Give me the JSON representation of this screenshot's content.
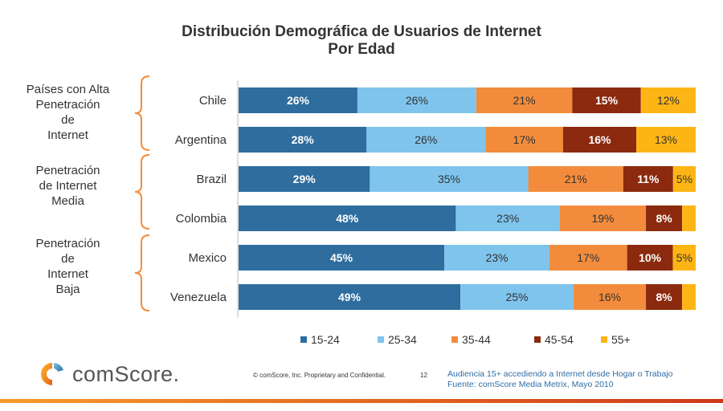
{
  "header": {
    "title_line1": "Distribución Demográfica de Usuarios de Internet",
    "title_line2": "Por Edad"
  },
  "groups": [
    {
      "label_lines": [
        "Países con Alta",
        "Penetración",
        "de",
        "Internet"
      ]
    },
    {
      "label_lines": [
        "Penetración",
        "de Internet",
        "Media"
      ]
    },
    {
      "label_lines": [
        "Penetración",
        "de",
        "Internet",
        "Baja"
      ]
    }
  ],
  "chart_data": {
    "type": "bar",
    "orientation": "horizontal",
    "stacked": true,
    "normalized": true,
    "title": "Distribución Demográfica de Usuarios de Internet Por Edad",
    "categories": [
      "Chile",
      "Argentina",
      "Brazil",
      "Colombia",
      "Mexico",
      "Venezuela"
    ],
    "series": [
      {
        "name": "15-24",
        "color": "#2e6d9e",
        "values": [
          26,
          28,
          29,
          48,
          45,
          49
        ],
        "labels": [
          "26%",
          "28%",
          "29%",
          "48%",
          "45%",
          "49%"
        ]
      },
      {
        "name": "25-34",
        "color": "#7fc4ec",
        "values": [
          26,
          26,
          35,
          23,
          23,
          25
        ],
        "labels": [
          "26%",
          "26%",
          "35%",
          "23%",
          "23%",
          "25%"
        ]
      },
      {
        "name": "35-44",
        "color": "#f28c3c",
        "values": [
          21,
          17,
          21,
          19,
          17,
          16
        ],
        "labels": [
          "21%",
          "17%",
          "21%",
          "19%",
          "17%",
          "16%"
        ]
      },
      {
        "name": "45-54",
        "color": "#8b2a0e",
        "values": [
          15,
          16,
          11,
          8,
          10,
          8
        ],
        "labels": [
          "15%",
          "16%",
          "11%",
          "8%",
          "10%",
          "8%"
        ]
      },
      {
        "name": "55+",
        "color": "#fdb515",
        "values": [
          12,
          13,
          5,
          3,
          5,
          3
        ],
        "labels": [
          "12%",
          "13%",
          "5%",
          "",
          "5%",
          ""
        ]
      }
    ],
    "legend_position": "bottom",
    "grid": false
  },
  "footer": {
    "logo_text": "comScore.",
    "legal": "© comScore, Inc.  Proprietary and Confidential.",
    "page": "12",
    "source_line1": "Audiencia 15+ accediendo a Internet desde Hogar o Trabajo",
    "source_line2": "Fuente:  comScore Media Metrix, Mayo 2010"
  }
}
